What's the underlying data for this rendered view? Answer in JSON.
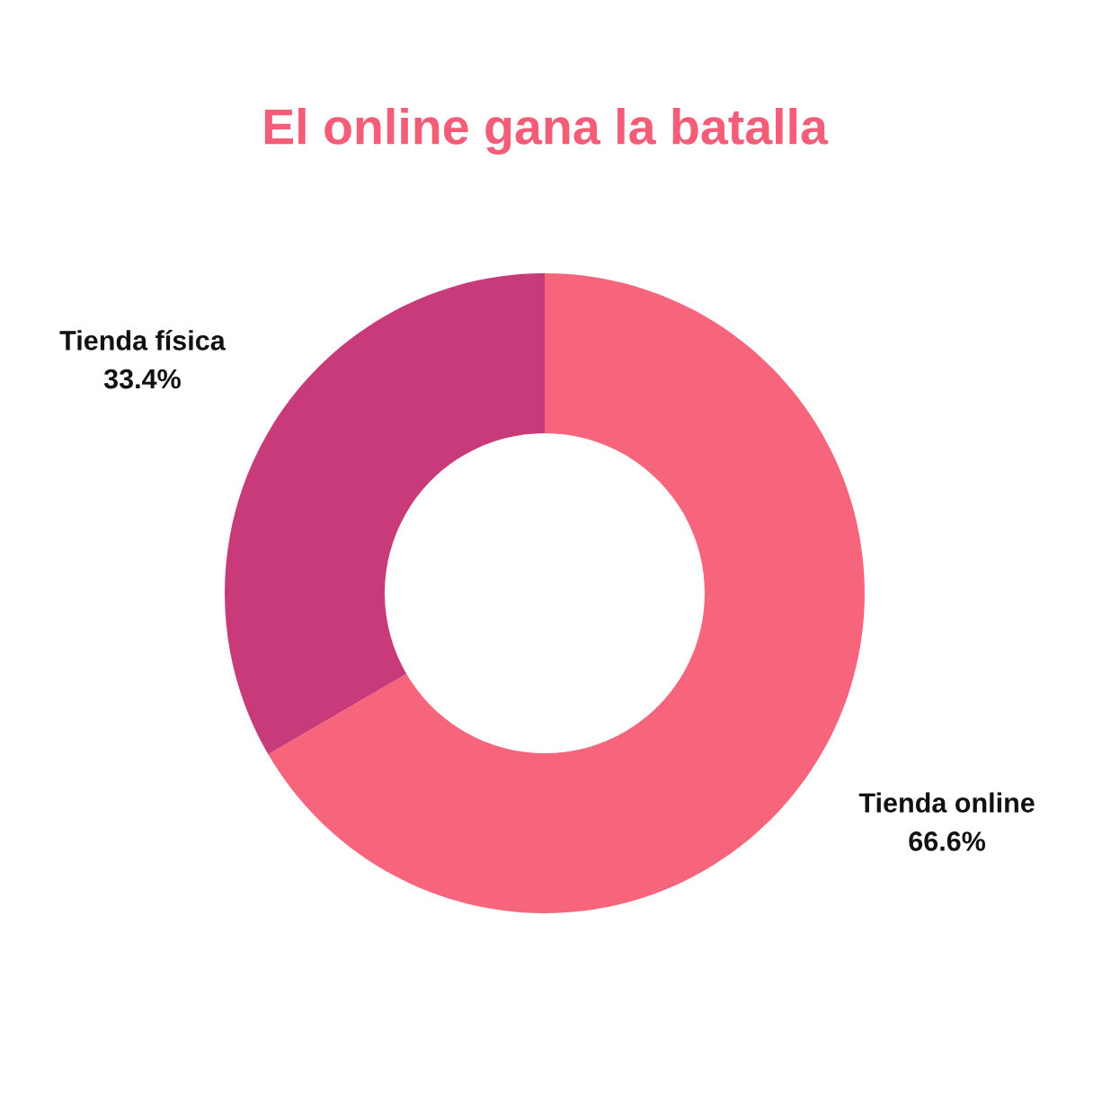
{
  "chart_data": {
    "type": "donut",
    "title": "El online gana la batalla",
    "categories": [
      "Tienda online",
      "Tienda física"
    ],
    "values": [
      66.6,
      33.4
    ],
    "colors": [
      "#f7657c",
      "#c93a7a"
    ],
    "value_labels": [
      "66.6%",
      "33.4%"
    ]
  }
}
